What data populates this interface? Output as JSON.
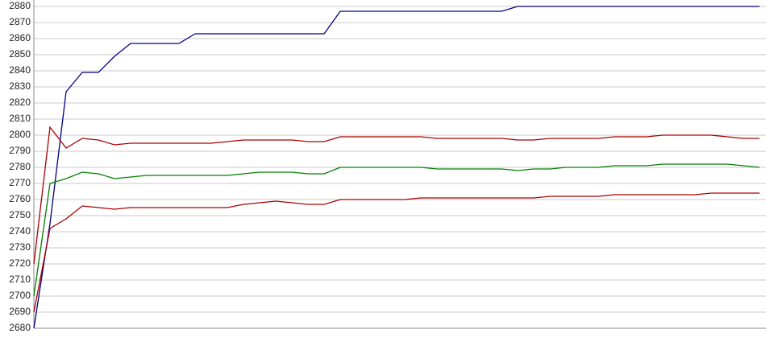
{
  "chart_data": {
    "type": "line",
    "categories": [
      null,
      null,
      null,
      null,
      null,
      null,
      null,
      null,
      null,
      null,
      null,
      null,
      null,
      null,
      null,
      null,
      null,
      null,
      null,
      null,
      null,
      null,
      null,
      null,
      null,
      null,
      null,
      null,
      null,
      null,
      null,
      null,
      null,
      null,
      null,
      null,
      null,
      null,
      null,
      null,
      null,
      null,
      null,
      null,
      null,
      null
    ],
    "series": [
      {
        "color": "#000080",
        "values": [
          2680,
          2745,
          2827,
          2839,
          2839,
          2849,
          2857,
          2857,
          2857,
          2857,
          2863,
          2863,
          2863,
          2863,
          2863,
          2863,
          2863,
          2863,
          2863,
          2877,
          2877,
          2877,
          2877,
          2877,
          2877,
          2877,
          2877,
          2877,
          2877,
          2877,
          2880,
          2880,
          2880,
          2880,
          2880,
          2880,
          2880,
          2880,
          2880,
          2880,
          2880,
          2880,
          2880,
          2880,
          2880,
          2880
        ]
      },
      {
        "color": "#aa0000",
        "values": [
          2720,
          2805,
          2792,
          2798,
          2797,
          2794,
          2795,
          2795,
          2795,
          2795,
          2795,
          2795,
          2796,
          2797,
          2797,
          2797,
          2797,
          2796,
          2796,
          2799,
          2799,
          2799,
          2799,
          2799,
          2799,
          2798,
          2798,
          2798,
          2798,
          2798,
          2797,
          2797,
          2798,
          2798,
          2798,
          2798,
          2799,
          2799,
          2799,
          2800,
          2800,
          2800,
          2800,
          2799,
          2798,
          2798
        ]
      },
      {
        "color": "#008000",
        "values": [
          2700,
          2770,
          2773,
          2777,
          2776,
          2773,
          2774,
          2775,
          2775,
          2775,
          2775,
          2775,
          2775,
          2776,
          2777,
          2777,
          2777,
          2776,
          2776,
          2780,
          2780,
          2780,
          2780,
          2780,
          2780,
          2779,
          2779,
          2779,
          2779,
          2779,
          2778,
          2779,
          2779,
          2780,
          2780,
          2780,
          2781,
          2781,
          2781,
          2782,
          2782,
          2782,
          2782,
          2782,
          2781,
          2780
        ]
      },
      {
        "color": "#aa0000",
        "values": [
          2690,
          2742,
          2748,
          2756,
          2755,
          2754,
          2755,
          2755,
          2755,
          2755,
          2755,
          2755,
          2755,
          2757,
          2758,
          2759,
          2758,
          2757,
          2757,
          2760,
          2760,
          2760,
          2760,
          2760,
          2761,
          2761,
          2761,
          2761,
          2761,
          2761,
          2761,
          2761,
          2762,
          2762,
          2762,
          2762,
          2763,
          2763,
          2763,
          2763,
          2763,
          2763,
          2764,
          2764,
          2764,
          2764
        ]
      }
    ],
    "ylim": [
      2680,
      2880
    ],
    "yticks": [
      2680,
      2690,
      2700,
      2710,
      2720,
      2730,
      2740,
      2750,
      2760,
      2770,
      2780,
      2790,
      2800,
      2810,
      2820,
      2830,
      2840,
      2850,
      2860,
      2870,
      2880
    ],
    "grid": true
  }
}
